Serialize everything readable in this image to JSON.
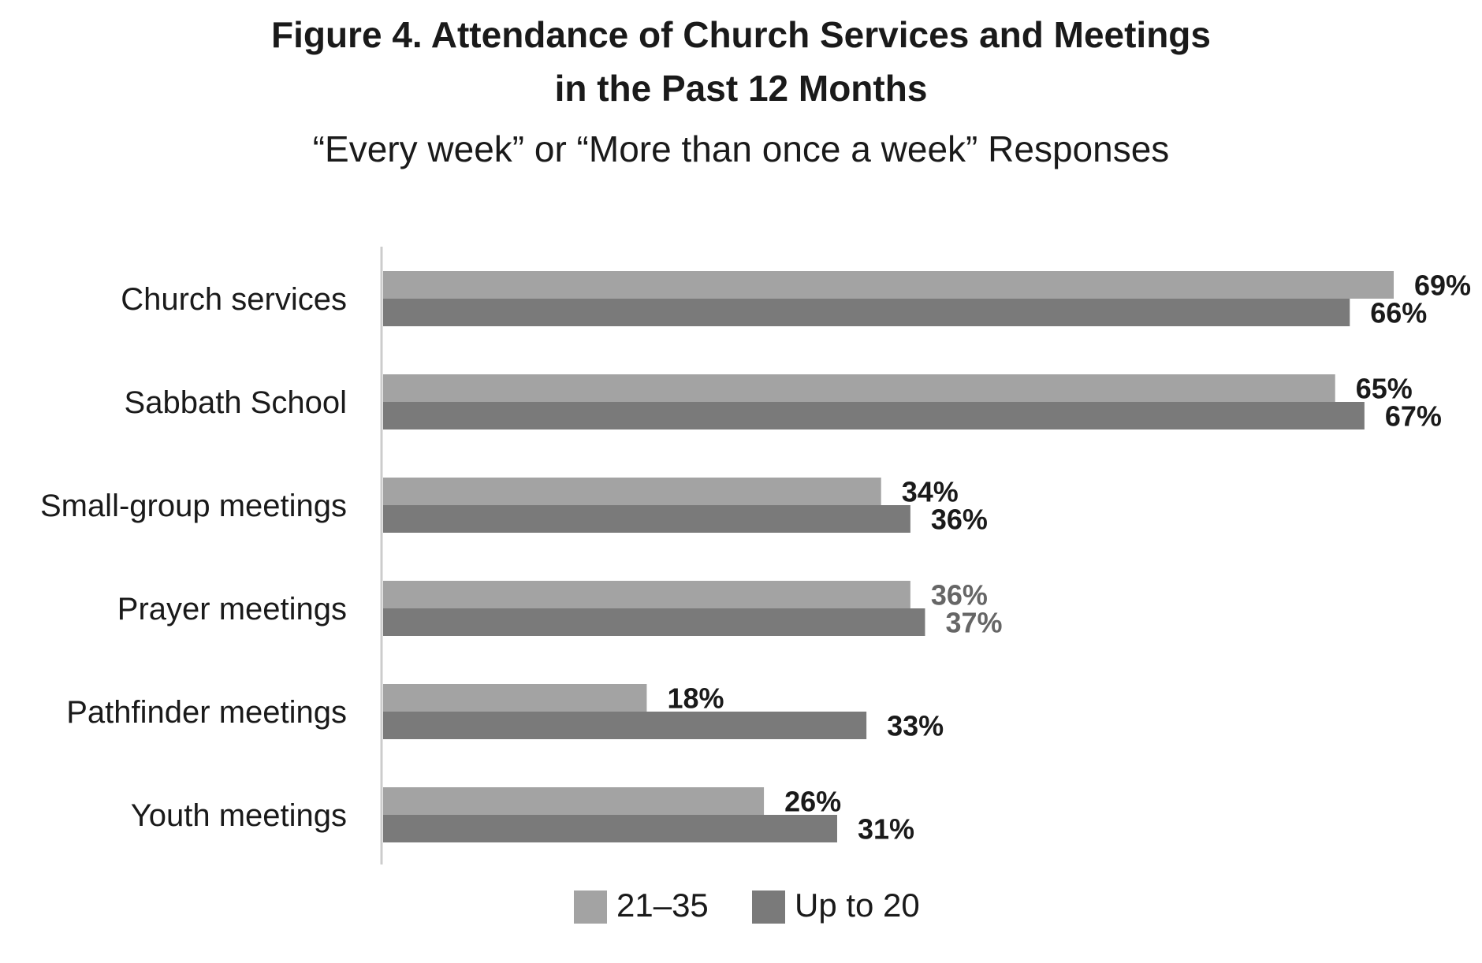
{
  "chart_data": {
    "type": "bar",
    "orientation": "horizontal",
    "title_line1": "Figure 4. Attendance of Church Services and Meetings",
    "title_line2": "in the Past 12 Months",
    "subtitle": "“Every week” or “More than once a week” Responses",
    "xlabel": "",
    "ylabel": "",
    "xlim": [
      0,
      100
    ],
    "grid": false,
    "legend_position": "bottom",
    "categories": [
      "Church services",
      "Sabbath School",
      "Small-group meetings",
      "Prayer meetings",
      "Pathfinder meetings",
      "Youth meetings"
    ],
    "series": [
      {
        "name": "21–35",
        "color": "#a3a3a3",
        "values": [
          69,
          65,
          34,
          36,
          18,
          26
        ],
        "labels": [
          "69%",
          "65%",
          "34%",
          "36%",
          "18%",
          "26%"
        ]
      },
      {
        "name": "Up to 20",
        "color": "#7a7a7a",
        "values": [
          66,
          67,
          36,
          37,
          33,
          31
        ],
        "labels": [
          "66%",
          "67%",
          "36%",
          "37%",
          "33%",
          "31%"
        ]
      }
    ],
    "label_colors": {
      "default": "#1a1a1a",
      "Prayer meetings": "#666666"
    },
    "axis_color": "#cccccc"
  }
}
